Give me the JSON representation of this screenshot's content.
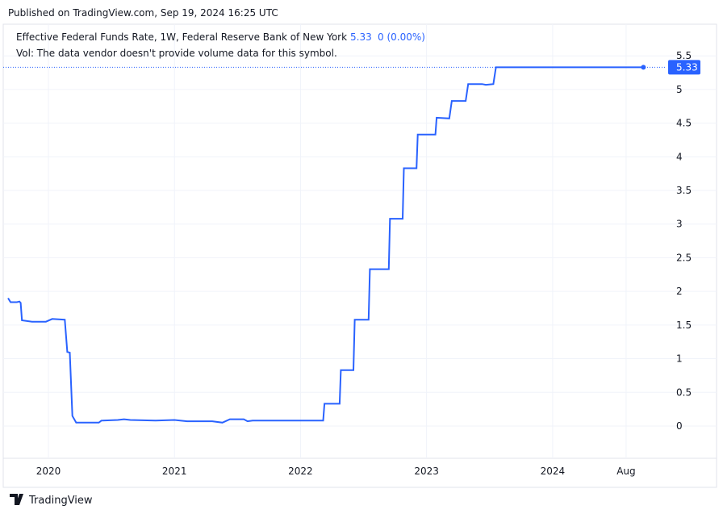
{
  "header": "Published on TradingView.com, Sep 19, 2024 16:25 UTC",
  "footer": "TradingView",
  "chart_data": {
    "type": "line",
    "title": "Effective Federal Funds Rate, 1W, Federal Reserve Bank of New York",
    "change": "0 (0.00%)",
    "subtitle": "Vol: The data vendor doesn't provide volume data for this symbol.",
    "xlim": [
      2019.68,
      2024.865
    ],
    "ylim": [
      -0.48,
      5.97
    ],
    "xticks": [
      {
        "value": 2020,
        "label": "2020"
      },
      {
        "value": 2021,
        "label": "2021"
      },
      {
        "value": 2022,
        "label": "2022"
      },
      {
        "value": 2023,
        "label": "2023"
      },
      {
        "value": 2024,
        "label": "2024"
      },
      {
        "value": 2024.583,
        "label": "Aug"
      }
    ],
    "yticks": [
      0,
      0.5,
      1,
      1.5,
      2,
      2.5,
      3,
      3.5,
      4,
      4.5,
      5,
      5.5
    ],
    "grid": true,
    "series": [
      {
        "name": "Effective Federal Funds Rate",
        "color": "#2962ff",
        "x": [
          2019.68,
          2019.7,
          2019.75,
          2019.77,
          2019.78,
          2019.79,
          2019.87,
          2019.98,
          2020.03,
          2020.13,
          2020.15,
          2020.17,
          2020.19,
          2020.22,
          2020.4,
          2020.42,
          2020.55,
          2020.6,
          2020.65,
          2020.85,
          2021.0,
          2021.1,
          2021.3,
          2021.38,
          2021.44,
          2021.55,
          2021.58,
          2021.62,
          2021.85,
          2022.0,
          2022.18,
          2022.19,
          2022.31,
          2022.32,
          2022.42,
          2022.43,
          2022.54,
          2022.55,
          2022.7,
          2022.71,
          2022.81,
          2022.82,
          2022.92,
          2022.93,
          2023.07,
          2023.08,
          2023.18,
          2023.2,
          2023.31,
          2023.33,
          2023.44,
          2023.47,
          2023.53,
          2023.55,
          2024.72
        ],
        "values": [
          1.9,
          1.84,
          1.84,
          1.85,
          1.83,
          1.57,
          1.55,
          1.55,
          1.59,
          1.58,
          1.1,
          1.09,
          0.15,
          0.05,
          0.05,
          0.08,
          0.09,
          0.1,
          0.09,
          0.08,
          0.09,
          0.07,
          0.07,
          0.05,
          0.1,
          0.1,
          0.07,
          0.08,
          0.08,
          0.08,
          0.08,
          0.33,
          0.33,
          0.83,
          0.83,
          1.58,
          1.58,
          2.33,
          2.33,
          3.08,
          3.08,
          3.83,
          3.83,
          4.33,
          4.33,
          4.58,
          4.57,
          4.83,
          4.83,
          5.08,
          5.08,
          5.07,
          5.08,
          5.33,
          5.33
        ]
      }
    ]
  }
}
